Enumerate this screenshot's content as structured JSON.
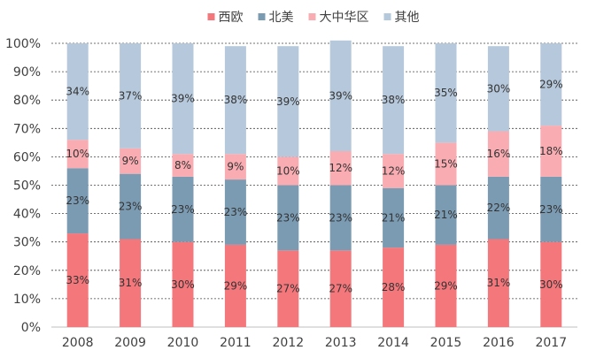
{
  "chart_data": {
    "type": "bar",
    "stacked": true,
    "categories": [
      "2008",
      "2009",
      "2010",
      "2011",
      "2012",
      "2013",
      "2014",
      "2015",
      "2016",
      "2017"
    ],
    "series": [
      {
        "name": "西欧",
        "color": "#F4777C",
        "values": [
          33,
          31,
          30,
          29,
          27,
          27,
          28,
          29,
          31,
          30
        ],
        "labels": [
          "33%",
          "31%",
          "30%",
          "29%",
          "27%",
          "27%",
          "28%",
          "29%",
          "31%",
          "30%"
        ]
      },
      {
        "name": "北美",
        "color": "#7B9BB3",
        "values": [
          23,
          23,
          23,
          23,
          23,
          23,
          21,
          21,
          22,
          23
        ],
        "labels": [
          "23%",
          "23%",
          "23%",
          "23%",
          "23%",
          "23%",
          "21%",
          "21%",
          "22%",
          "23%"
        ]
      },
      {
        "name": "大中华区",
        "color": "#F9ADB2",
        "values": [
          10,
          9,
          8,
          9,
          10,
          12,
          12,
          15,
          16,
          18
        ],
        "labels": [
          "10%",
          "9%",
          "8%",
          "9%",
          "10%",
          "12%",
          "12%",
          "15%",
          "16%",
          "18%"
        ]
      },
      {
        "name": "其他",
        "color": "#B6C8DB",
        "values": [
          34,
          37,
          39,
          38,
          39,
          39,
          38,
          35,
          30,
          29
        ],
        "labels": [
          "34%",
          "37%",
          "39%",
          "38%",
          "39%",
          "39%",
          "38%",
          "35%",
          "30%",
          "29%"
        ]
      }
    ],
    "ylim": [
      0,
      100
    ],
    "yticks": [
      "0%",
      "10%",
      "20%",
      "30%",
      "40%",
      "50%",
      "60%",
      "70%",
      "80%",
      "90%",
      "100%"
    ],
    "grid": "horizontal dashed",
    "legend_position": "top-center"
  }
}
